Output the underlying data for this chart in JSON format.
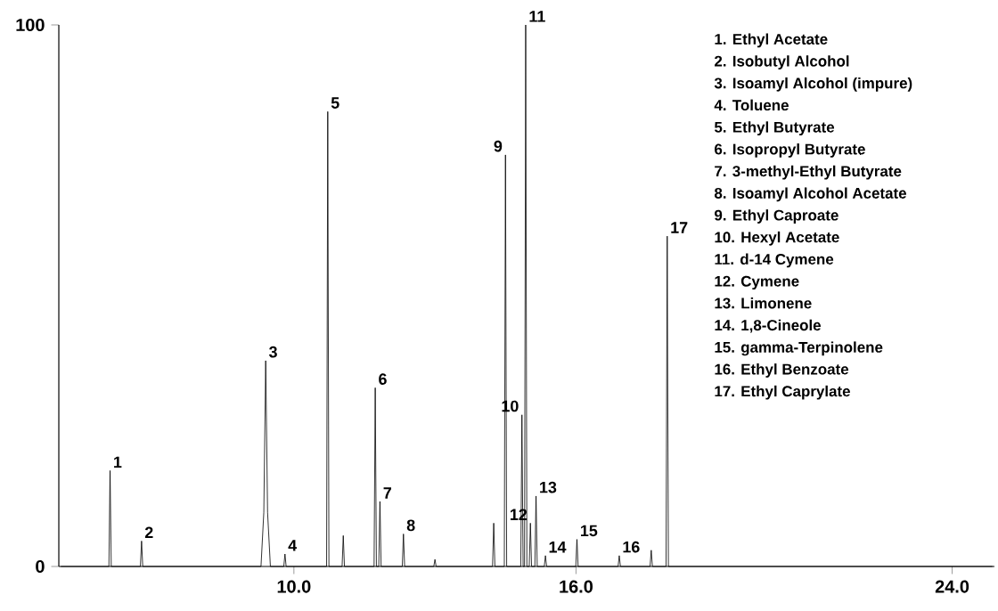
{
  "chart_data": {
    "type": "line",
    "color": "#000000",
    "marker": "none",
    "line_style": "solid",
    "x": [
      5.05,
      6.065,
      6.09,
      6.115,
      6.735,
      6.76,
      6.785,
      9.3,
      9.36,
      9.4,
      9.44,
      9.5,
      9.785,
      9.81,
      9.835,
      10.695,
      10.72,
      10.745,
      11.025,
      11.05,
      11.075,
      11.705,
      11.73,
      11.755,
      11.805,
      11.83,
      11.855,
      12.305,
      12.33,
      12.355,
      12.975,
      13.0,
      13.025,
      14.225,
      14.25,
      14.275,
      14.475,
      14.5,
      14.525,
      14.825,
      14.85,
      14.875,
      14.905,
      14.93,
      14.955,
      15.005,
      15.03,
      15.055,
      15.125,
      15.15,
      15.175,
      15.325,
      15.35,
      15.375,
      15.995,
      16.02,
      16.045,
      16.895,
      16.92,
      16.945,
      17.575,
      17.6,
      17.625,
      17.915,
      17.94,
      17.965,
      24.85
    ],
    "values": [
      0,
      0,
      17.7,
      0,
      0,
      4.7,
      0,
      0,
      10,
      38,
      10,
      0,
      0,
      2.3,
      0,
      0,
      84,
      0,
      0,
      5.7,
      0,
      0,
      33,
      0,
      0,
      12,
      0,
      0,
      6,
      0,
      0,
      1.3,
      0,
      0,
      8,
      0,
      0,
      76,
      0,
      0,
      28,
      0,
      0,
      100,
      0,
      0,
      8,
      0,
      0,
      13,
      0,
      0,
      2,
      0,
      0,
      5,
      0,
      0,
      2,
      0,
      0,
      3,
      0,
      0,
      61,
      0,
      0
    ],
    "xlim": [
      5.0,
      24.9
    ],
    "ylim": [
      0,
      100
    ],
    "xticks": [
      {
        "value": 10,
        "label": "10.0"
      },
      {
        "value": 16,
        "label": "16.0"
      },
      {
        "value": 24,
        "label": "24.0"
      }
    ],
    "yticks": [
      0,
      100
    ],
    "grid": false,
    "annotations": [
      {
        "text": "1",
        "x": 6.09,
        "y": 17.7
      },
      {
        "text": "2",
        "x": 6.76,
        "y": 4.7
      },
      {
        "text": "3",
        "x": 9.4,
        "y": 38
      },
      {
        "text": "4",
        "x": 9.81,
        "y": 2.3
      },
      {
        "text": "5",
        "x": 10.72,
        "y": 84
      },
      {
        "text": "6",
        "x": 11.73,
        "y": 33
      },
      {
        "text": "7",
        "x": 11.83,
        "y": 12
      },
      {
        "text": "8",
        "x": 12.33,
        "y": 6
      },
      {
        "text": "9",
        "x": 14.5,
        "y": 76
      },
      {
        "text": "10",
        "x": 14.85,
        "y": 28
      },
      {
        "text": "11",
        "x": 14.93,
        "y": 100
      },
      {
        "text": "12",
        "x": 15.03,
        "y": 8
      },
      {
        "text": "13",
        "x": 15.15,
        "y": 13
      },
      {
        "text": "14",
        "x": 15.35,
        "y": 2
      },
      {
        "text": "15",
        "x": 16.02,
        "y": 5
      },
      {
        "text": "16",
        "x": 16.92,
        "y": 2
      },
      {
        "text": "17",
        "x": 17.94,
        "y": 61
      },
      "1. Ethyl Acetate",
      "2. Isobutyl Alcohol",
      "3. Isoamyl Alcohol (impure)",
      "4. Toluene",
      "5. Ethyl Butyrate",
      "6. Isopropyl Butyrate",
      "7. 3-methyl-Ethyl Butyrate",
      "8. Isoamyl Alcohol Acetate",
      "9. Ethyl Caproate",
      "10. Hexyl Acetate",
      "11. d-14 Cymene",
      "12. Cymene",
      "13. Limonene",
      "14. 1,8-Cineole",
      "15. gamma-Terpinolene",
      "16. Ethyl Benzoate",
      "17. Ethyl Caprylate"
    ]
  }
}
